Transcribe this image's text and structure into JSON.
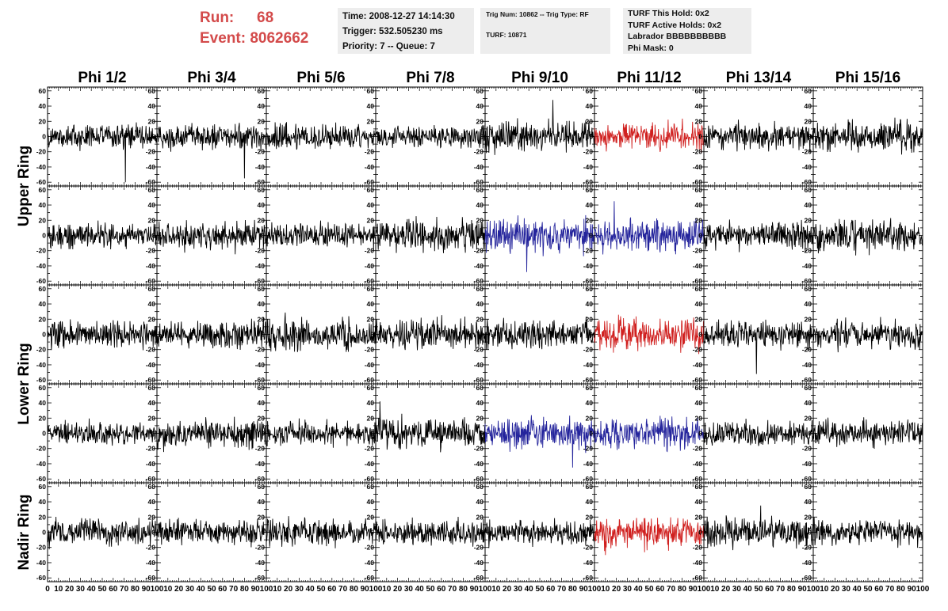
{
  "header": {
    "run_label": "Run:",
    "run_value": "68",
    "event_label": "Event:",
    "event_value": "8062662",
    "time": "Time: 2008-12-27 14:14:30",
    "trigger": "Trigger: 532.505230 ms",
    "priority": "Priority: 7 -- Queue: 7",
    "trig_num": "Trig Num: 10862 -- Trig Type: RF",
    "turf": "TURF: 10871",
    "turf_this_hold": "TURF This Hold: 0x2",
    "turf_active_holds": "TURF Active Holds: 0x2",
    "labrador": "Labrador BBBBBBBBBB",
    "phi_mask": "Phi Mask: 0"
  },
  "colors": {
    "run_text": "#d34a4a",
    "trace_default": "#000000",
    "trace_red": "#d0201f",
    "trace_blue": "#24249c",
    "info_bg": "#ededed"
  },
  "chart_data": {
    "type": "line",
    "columns": [
      "Phi 1/2",
      "Phi 3/4",
      "Phi 5/6",
      "Phi 7/8",
      "Phi 9/10",
      "Phi 11/12",
      "Phi 13/14",
      "Phi 15/16"
    ],
    "ring_labels": [
      "Upper Ring",
      "Lower Ring",
      "Nadir Ring"
    ],
    "ring_rows": [
      [
        0,
        1
      ],
      [
        2,
        3
      ],
      [
        4
      ]
    ],
    "xlim": [
      0,
      100
    ],
    "ylim": [
      -65,
      65
    ],
    "y_ticks": [
      60,
      40,
      20,
      0,
      -20,
      -40,
      -60
    ],
    "x_ticks": [
      0,
      10,
      20,
      30,
      40,
      50,
      60,
      70,
      80,
      90,
      100
    ],
    "rows": 5,
    "amplitude_rows": [
      [
        12,
        12,
        13,
        11,
        15,
        13,
        13,
        14
      ],
      [
        12,
        14,
        12,
        15,
        16,
        16,
        13,
        15
      ],
      [
        14,
        13,
        15,
        14,
        14,
        15,
        14,
        13
      ],
      [
        11,
        14,
        12,
        15,
        15,
        15,
        13,
        12
      ],
      [
        13,
        12,
        13,
        12,
        12,
        15,
        14,
        12
      ]
    ],
    "trace_colors": [
      [
        "black",
        "black",
        "black",
        "black",
        "black",
        "red",
        "black",
        "black"
      ],
      [
        "black",
        "black",
        "black",
        "black",
        "blue",
        "blue",
        "black",
        "black"
      ],
      [
        "black",
        "black",
        "black",
        "black",
        "black",
        "red",
        "black",
        "black"
      ],
      [
        "black",
        "black",
        "black",
        "black",
        "blue",
        "blue",
        "black",
        "black"
      ],
      [
        "black",
        "black",
        "black",
        "black",
        "black",
        "red",
        "black",
        "black"
      ]
    ],
    "notable_spikes": [
      {
        "row": 0,
        "col": 0,
        "x": 71,
        "y": -60
      },
      {
        "row": 0,
        "col": 1,
        "x": 80,
        "y": -55
      },
      {
        "row": 0,
        "col": 4,
        "x": 62,
        "y": 48
      },
      {
        "row": 1,
        "col": 4,
        "x": 38,
        "y": -48
      },
      {
        "row": 1,
        "col": 5,
        "x": 18,
        "y": 45
      },
      {
        "row": 2,
        "col": 6,
        "x": 48,
        "y": -52
      },
      {
        "row": 3,
        "col": 3,
        "x": 4,
        "y": 42
      },
      {
        "row": 3,
        "col": 4,
        "x": 80,
        "y": -45
      },
      {
        "row": 4,
        "col": 5,
        "x": 10,
        "y": -30
      },
      {
        "row": 4,
        "col": 6,
        "x": 52,
        "y": 35
      }
    ]
  }
}
